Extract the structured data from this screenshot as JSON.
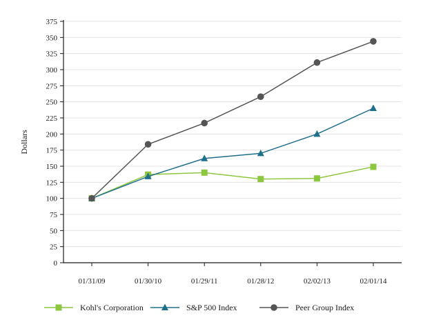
{
  "chart_data": {
    "type": "line",
    "title": "",
    "xlabel": "",
    "ylabel": "Dollars",
    "ylim": [
      0,
      375
    ],
    "ytick_step": 25,
    "grid": "horizontal",
    "legend_position": "bottom",
    "categories": [
      "01/31/09",
      "01/30/10",
      "01/29/11",
      "01/28/12",
      "02/02/13",
      "02/01/14"
    ],
    "series": [
      {
        "name": "Kohl's Corporation",
        "marker": "square",
        "color": "#8dc63f",
        "values": [
          100,
          137,
          140,
          130,
          131,
          149
        ]
      },
      {
        "name": "S&P 500 Index",
        "marker": "triangle",
        "color": "#1f6f8b",
        "values": [
          100,
          134,
          162,
          170,
          200,
          240
        ]
      },
      {
        "name": "Peer Group Index",
        "marker": "circle",
        "color": "#555555",
        "values": [
          100,
          184,
          217,
          258,
          311,
          344
        ]
      }
    ]
  }
}
